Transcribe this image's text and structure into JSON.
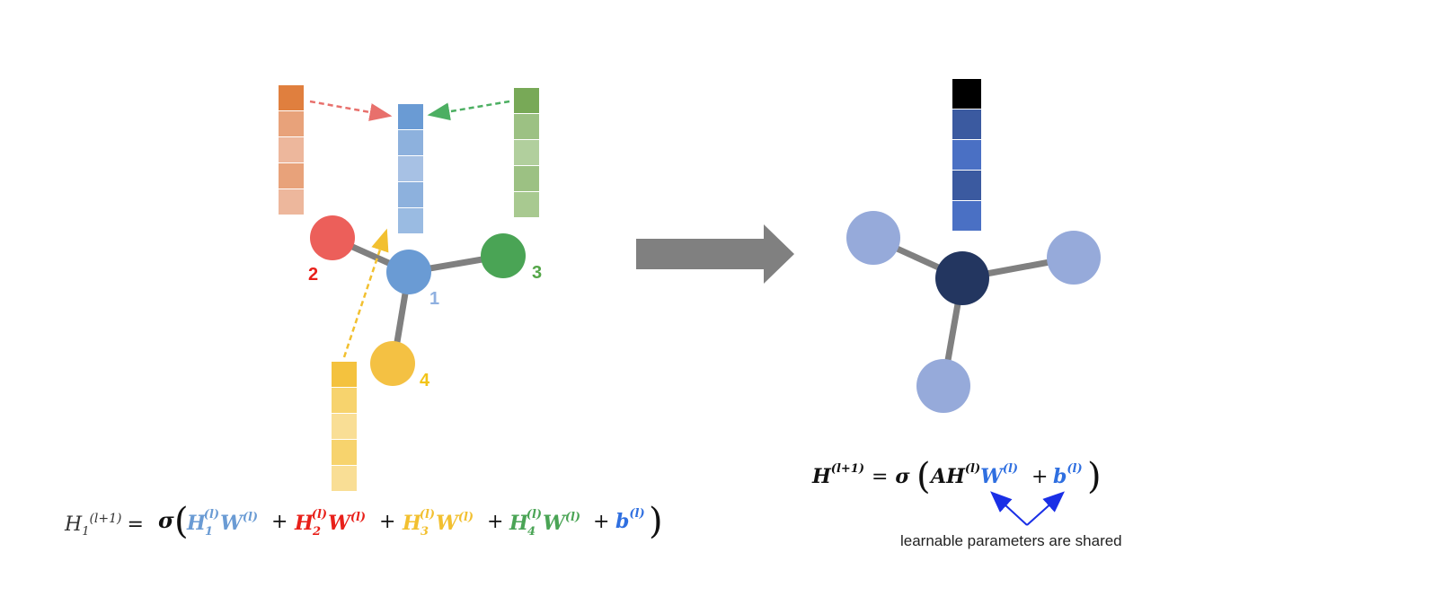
{
  "left_graph": {
    "nodes": [
      {
        "id": "1",
        "label": "1",
        "color": "#6A9BD4",
        "label_color": "#8FB0E0"
      },
      {
        "id": "2",
        "label": "2",
        "color": "#EC5F5A",
        "label_color": "#E8201A"
      },
      {
        "id": "3",
        "label": "3",
        "color": "#4AA455",
        "label_color": "#54A648"
      },
      {
        "id": "4",
        "label": "4",
        "color": "#F4C143",
        "label_color": "#F2C418"
      }
    ],
    "feature_vectors": {
      "node_1": [
        "#6A9BD4",
        "#8DB1DD",
        "#A7C1E4",
        "#8DB1DD",
        "#9ABBE2"
      ],
      "node_2": [
        "#E07F3E",
        "#E8A27A",
        "#EDB79C",
        "#E8A27A",
        "#EDB79C"
      ],
      "node_3": [
        "#78A957",
        "#9CC183",
        "#B1CF9D",
        "#9CC183",
        "#A8C990"
      ],
      "node_4": [
        "#F4C23E",
        "#F7D36D",
        "#F9DE95",
        "#F7D36D",
        "#F9DE95"
      ]
    },
    "arrow_colors": {
      "from_2": "#E8706C",
      "from_3": "#4CAF62",
      "from_4": "#F2C030"
    }
  },
  "transition_arrow_color": "#808080",
  "right_graph": {
    "center_color": "#233660",
    "neighbor_color": "#96AADA",
    "output_vector": [
      "#000000",
      "#3B5AA0",
      "#4A70C4",
      "#3B5AA0",
      "#4A70C4"
    ]
  },
  "equations": {
    "left": {
      "lhs": "H",
      "lhs_sub": "1",
      "lhs_sup": "(l+1)",
      "equals": "=",
      "sigma": "σ",
      "terms": [
        {
          "H": "H",
          "sub": "1",
          "sup": "(l)",
          "W": "W",
          "Wsup": "(l)",
          "color": "#6A9BD4"
        },
        {
          "H": "H",
          "sub": "2",
          "sup": "(l)",
          "W": "W",
          "Wsup": "(l)",
          "color": "#E8201A"
        },
        {
          "H": "H",
          "sub": "3",
          "sup": "(l)",
          "W": "W",
          "Wsup": "(l)",
          "color": "#F2C030"
        },
        {
          "H": "H",
          "sub": "4",
          "sup": "(l)",
          "W": "W",
          "Wsup": "(l)",
          "color": "#4AA455"
        }
      ],
      "bias": {
        "b": "b",
        "sup": "(l)",
        "color": "#2F6FE0"
      }
    },
    "right": {
      "H": "H",
      "H_sup": "(l+1)",
      "equals": "=",
      "sigma": "σ",
      "A": "A",
      "AH": "H",
      "AH_sup": "(l)",
      "W": "W",
      "W_sup": "(l)",
      "b": "b",
      "b_sup": "(l)",
      "param_color": "#2F6FE0"
    },
    "annotation": "learnable parameters are shared",
    "annotation_arrow_color": "#1A2FE6"
  }
}
